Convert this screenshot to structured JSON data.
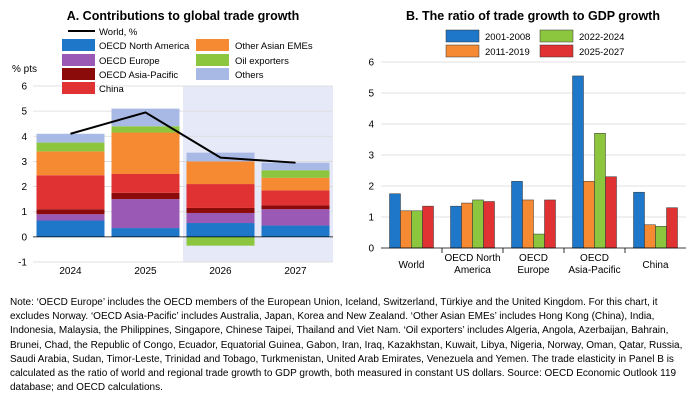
{
  "colors": {
    "oecd_north_america": "#1f77c9",
    "other_asian_emes": "#f58a32",
    "oecd_europe": "#9b59b6",
    "oil_exporters": "#8cc63f",
    "oecd_asia_pacific": "#8b0a0a",
    "others": "#a9b9e6",
    "china": "#e03232",
    "world_line": "#000000",
    "forecast_shade": "#e6eaf8",
    "b_2001": "#1f77c9",
    "b_2011": "#f58a32",
    "b_2022": "#8cc63f",
    "b_2025": "#e03232"
  },
  "chart_data": [
    {
      "type": "bar",
      "stacked": true,
      "title": "A. Contributions to global trade growth",
      "ylabel": "% pts",
      "ylim": [
        -1,
        6
      ],
      "yticks": [
        -1,
        0,
        1,
        2,
        3,
        4,
        5,
        6
      ],
      "grid": true,
      "shaded_categories": [
        "2026",
        "2027"
      ],
      "categories": [
        "2024",
        "2025",
        "2026",
        "2027"
      ],
      "series": [
        {
          "name": "OECD North America",
          "color_key": "oecd_north_america",
          "values": [
            0.65,
            0.35,
            0.55,
            0.45
          ]
        },
        {
          "name": "OECD Europe",
          "color_key": "oecd_europe",
          "values": [
            0.25,
            1.15,
            0.4,
            0.65
          ]
        },
        {
          "name": "OECD Asia-Pacific",
          "color_key": "oecd_asia_pacific",
          "values": [
            0.2,
            0.25,
            0.2,
            0.15
          ]
        },
        {
          "name": "China",
          "color_key": "china",
          "values": [
            1.35,
            0.75,
            0.95,
            0.6
          ]
        },
        {
          "name": "Other Asian EMEs",
          "color_key": "other_asian_emes",
          "values": [
            0.95,
            1.65,
            0.9,
            0.5
          ]
        },
        {
          "name": "Oil exporters",
          "color_key": "oil_exporters",
          "values": [
            0.35,
            0.25,
            -0.35,
            0.3
          ]
        },
        {
          "name": "Others",
          "color_key": "others",
          "values": [
            0.35,
            0.7,
            0.35,
            0.3
          ]
        }
      ],
      "line": {
        "name": "World, %",
        "color_key": "world_line",
        "values": [
          4.1,
          4.95,
          3.15,
          2.95
        ]
      },
      "legend": {
        "left": [
          "OECD North America",
          "OECD Europe",
          "OECD Asia-Pacific",
          "China"
        ],
        "right": [
          "Other Asian EMEs",
          "Oil exporters",
          "Others"
        ]
      }
    },
    {
      "type": "bar",
      "title": "B. The ratio of trade growth to GDP growth",
      "ylim": [
        0,
        6
      ],
      "yticks": [
        0,
        1,
        2,
        3,
        4,
        5,
        6
      ],
      "grid": true,
      "categories": [
        "World",
        "OECD North America",
        "OECD Europe",
        "OECD Asia-Pacific",
        "China"
      ],
      "category_lines": [
        [
          "World"
        ],
        [
          "OECD North",
          "America"
        ],
        [
          "OECD",
          "Europe"
        ],
        [
          "OECD",
          "Asia-Pacific"
        ],
        [
          "China"
        ]
      ],
      "series": [
        {
          "name": "2001-2008",
          "color_key": "b_2001",
          "values": [
            1.75,
            1.35,
            2.15,
            5.55,
            1.8
          ]
        },
        {
          "name": "2011-2019",
          "color_key": "b_2011",
          "values": [
            1.2,
            1.45,
            1.55,
            2.15,
            0.75
          ]
        },
        {
          "name": "2022-2024",
          "color_key": "b_2022",
          "values": [
            1.2,
            1.55,
            0.45,
            3.7,
            0.7
          ]
        },
        {
          "name": "2025-2027",
          "color_key": "b_2025",
          "values": [
            1.35,
            1.5,
            1.55,
            2.3,
            1.3
          ]
        }
      ],
      "legend": {
        "rows": [
          [
            "2001-2008",
            "2022-2024"
          ],
          [
            "2011-2019",
            "2025-2027"
          ]
        ]
      }
    }
  ],
  "note": "Note: ‘OECD Europe’ includes the OECD members of the European Union, Iceland, Switzerland, Türkiye and the United Kingdom. For this chart, it excludes Norway. ‘OECD Asia-Pacific’ includes Australia, Japan, Korea and New Zealand. ‘Other Asian EMEs’ includes Hong Kong (China), India, Indonesia, Malaysia, the Philippines, Singapore, Chinese Taipei, Thailand and Viet Nam. ‘Oil exporters’ includes Algeria, Angola, Azerbaijan, Bahrain, Brunei, Chad, the Republic of Congo, Ecuador, Equatorial Guinea, Gabon, Iran, Iraq, Kazakhstan, Kuwait, Libya, Nigeria, Norway, Oman, Qatar, Russia, Saudi Arabia, Sudan, Timor-Leste, Trinidad and Tobago, Turkmenistan, United Arab Emirates, Venezuela and Yemen. The trade elasticity in Panel B is calculated as the ratio of world and regional trade growth to GDP growth, both measured in constant US dollars. Source: OECD Economic Outlook 119 database; and OECD calculations."
}
